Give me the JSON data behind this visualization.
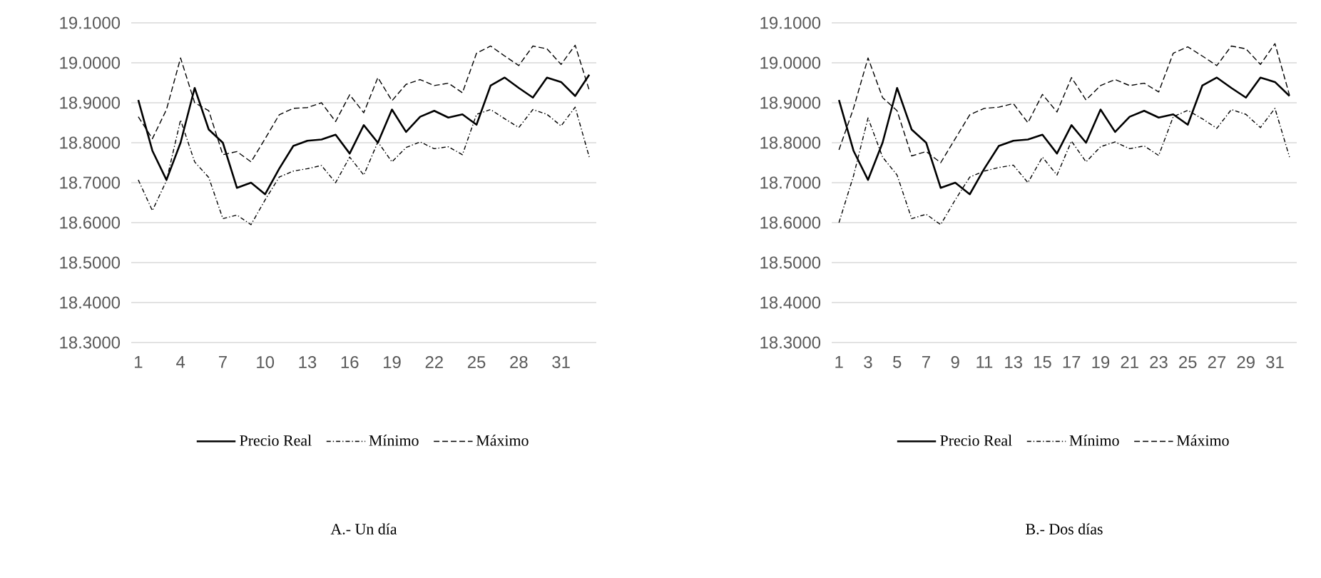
{
  "chart_data": [
    {
      "type": "line",
      "categories": [
        "1",
        null,
        null,
        "4",
        null,
        null,
        "7",
        null,
        null,
        "10",
        null,
        null,
        "13",
        null,
        null,
        "16",
        null,
        null,
        "19",
        null,
        null,
        "22",
        null,
        null,
        "25",
        null,
        null,
        "28",
        null,
        null,
        "31",
        null,
        null
      ],
      "ylim": [
        18.3,
        19.1
      ],
      "yticks": [
        {
          "value": 18.3,
          "label": "18.3000"
        },
        {
          "value": 18.4,
          "label": "18.4000"
        },
        {
          "value": 18.5,
          "label": "18.5000"
        },
        {
          "value": 18.6,
          "label": "18.6000"
        },
        {
          "value": 18.7,
          "label": "18.7000"
        },
        {
          "value": 18.8,
          "label": "18.8000"
        },
        {
          "value": 18.9,
          "label": "18.9000"
        },
        {
          "value": 19.0,
          "label": "19.0000"
        },
        {
          "value": 19.1,
          "label": "19.1000"
        }
      ],
      "grid": "y",
      "legend": "bottom",
      "annotations": [
        "A.- Un día"
      ],
      "series": [
        {
          "name": "Precio Real",
          "color": "#000000",
          "line_style": "solid",
          "values": [
            18.907,
            18.78,
            18.707,
            18.8,
            18.937,
            18.833,
            18.8,
            18.687,
            18.7,
            18.671,
            18.735,
            18.792,
            18.805,
            18.808,
            18.82,
            18.773,
            18.844,
            18.8,
            18.883,
            18.827,
            18.865,
            18.88,
            18.863,
            18.871,
            18.845,
            18.943,
            18.963,
            18.937,
            18.913,
            18.963,
            18.952,
            18.917,
            18.97
          ]
        },
        {
          "name": "Mínimo",
          "color": "#000000",
          "line_style": "dashdot",
          "values": [
            18.707,
            18.63,
            18.705,
            18.857,
            18.752,
            18.713,
            18.61,
            18.619,
            18.595,
            18.657,
            18.714,
            18.729,
            18.735,
            18.743,
            18.7,
            18.764,
            18.719,
            18.802,
            18.752,
            18.788,
            18.802,
            18.785,
            18.79,
            18.77,
            18.871,
            18.883,
            18.86,
            18.838,
            18.883,
            18.871,
            18.842,
            18.889,
            18.764
          ]
        },
        {
          "name": "Máximo",
          "color": "#000000",
          "line_style": "dashed",
          "values": [
            18.865,
            18.81,
            18.883,
            19.012,
            18.9,
            18.88,
            18.77,
            18.778,
            18.752,
            18.81,
            18.87,
            18.886,
            18.888,
            18.9,
            18.853,
            18.92,
            18.875,
            18.963,
            18.905,
            18.946,
            18.958,
            18.943,
            18.949,
            18.925,
            19.024,
            19.042,
            19.017,
            18.993,
            19.042,
            19.035,
            18.996,
            19.044,
            18.931
          ]
        }
      ]
    },
    {
      "type": "line",
      "categories": [
        "1",
        null,
        "3",
        null,
        "5",
        null,
        "7",
        null,
        "9",
        null,
        "11",
        null,
        "13",
        null,
        "15",
        null,
        "17",
        null,
        "19",
        null,
        "21",
        null,
        "23",
        null,
        "25",
        null,
        "27",
        null,
        "29",
        null,
        "31",
        null
      ],
      "ylim": [
        18.3,
        19.1
      ],
      "yticks": [
        {
          "value": 18.3,
          "label": "18.3000"
        },
        {
          "value": 18.4,
          "label": "18.4000"
        },
        {
          "value": 18.5,
          "label": "18.5000"
        },
        {
          "value": 18.6,
          "label": "18.6000"
        },
        {
          "value": 18.7,
          "label": "18.7000"
        },
        {
          "value": 18.8,
          "label": "18.8000"
        },
        {
          "value": 18.9,
          "label": "18.9000"
        },
        {
          "value": 19.0,
          "label": "19.0000"
        },
        {
          "value": 19.1,
          "label": "19.1000"
        }
      ],
      "grid": "y",
      "legend": "bottom",
      "annotations": [
        "B.- Dos días"
      ],
      "series": [
        {
          "name": "Precio Real",
          "color": "#000000",
          "line_style": "solid",
          "values": [
            18.907,
            18.78,
            18.707,
            18.8,
            18.937,
            18.833,
            18.8,
            18.687,
            18.7,
            18.671,
            18.735,
            18.792,
            18.805,
            18.808,
            18.82,
            18.773,
            18.844,
            18.8,
            18.883,
            18.827,
            18.865,
            18.88,
            18.863,
            18.871,
            18.845,
            18.943,
            18.963,
            18.937,
            18.913,
            18.963,
            18.952,
            18.917
          ]
        },
        {
          "name": "Mínimo",
          "color": "#000000",
          "line_style": "dashdot",
          "values": [
            18.6,
            18.717,
            18.862,
            18.764,
            18.719,
            18.61,
            18.621,
            18.595,
            18.657,
            18.714,
            18.729,
            18.738,
            18.744,
            18.7,
            18.764,
            18.719,
            18.804,
            18.752,
            18.79,
            18.802,
            18.785,
            18.792,
            18.768,
            18.865,
            18.881,
            18.86,
            18.836,
            18.883,
            18.871,
            18.838,
            18.886,
            18.764
          ]
        },
        {
          "name": "Máximo",
          "color": "#000000",
          "line_style": "dashed",
          "values": [
            18.782,
            18.886,
            19.012,
            18.913,
            18.88,
            18.767,
            18.778,
            18.75,
            18.81,
            18.87,
            18.886,
            18.889,
            18.898,
            18.85,
            18.921,
            18.877,
            18.963,
            18.907,
            18.943,
            18.958,
            18.943,
            18.949,
            18.927,
            19.024,
            19.04,
            19.017,
            18.993,
            19.042,
            19.035,
            18.996,
            19.048,
            18.919
          ]
        }
      ]
    }
  ]
}
